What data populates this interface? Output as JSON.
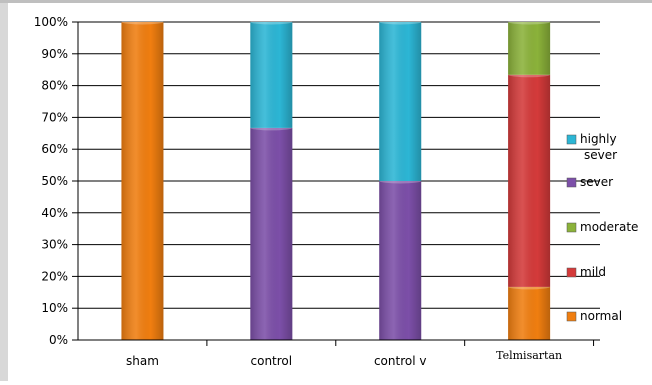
{
  "chart_data": {
    "type": "bar",
    "stacked": true,
    "percent": true,
    "categories": [
      "sham",
      "control",
      "control v",
      "Telmisartan"
    ],
    "series": [
      {
        "name": "normal",
        "color": "#F07E10",
        "values": [
          100,
          0,
          0,
          16.7
        ]
      },
      {
        "name": "mild",
        "color": "#D43A3A",
        "values": [
          0,
          0,
          0,
          66.7
        ]
      },
      {
        "name": "moderate",
        "color": "#8BB23A",
        "values": [
          0,
          0,
          0,
          16.6
        ]
      },
      {
        "name": "sever",
        "color": "#7C4FA8",
        "values": [
          0,
          66.7,
          50,
          0
        ]
      },
      {
        "name": "highly sever",
        "color": "#2CB6D5",
        "values": [
          0,
          33.3,
          50,
          0
        ]
      }
    ],
    "ylim": [
      0,
      100
    ],
    "yticks": [
      "0%",
      "10%",
      "20%",
      "30%",
      "40%",
      "50%",
      "60%",
      "70%",
      "80%",
      "90%",
      "100%"
    ],
    "grid": true,
    "legend_placement": "right",
    "legend_order": [
      "highly sever",
      "sever",
      "moderate",
      "mild",
      "normal"
    ]
  }
}
